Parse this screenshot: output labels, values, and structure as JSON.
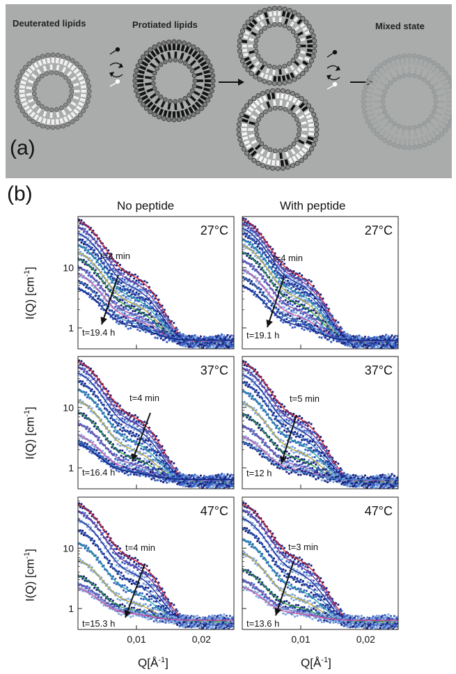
{
  "panel_a": {
    "label": "(a)",
    "titles": {
      "deuterated": "Deuterated lipids",
      "protiated": "Protiated lipids",
      "mixed": "Mixed state"
    }
  },
  "panel_b": {
    "label": "(b)",
    "col_titles": [
      "No peptide",
      "With peptide"
    ],
    "ylabel_text": "I(Q) [cm",
    "ylabel_sup": "-1",
    "ylabel_close": "]",
    "xlabel_text": "Q[Å",
    "xlabel_sup": "-1",
    "xlabel_close": "]",
    "y_ticks": [
      "10",
      "1"
    ],
    "x_ticks": [
      "0,01",
      "0,02"
    ]
  },
  "chart_data": [
    {
      "type": "scatter",
      "panel": "no-peptide-27C",
      "temperature": "27°C",
      "annotation_top": "t=3 min",
      "annotation_bottom": "t=19.4 h",
      "y_scale": "log",
      "ylim": [
        0.45,
        70
      ],
      "xlim": [
        0.001,
        0.025
      ],
      "y_ticks": [
        10,
        1
      ],
      "x_ticks": [
        "0,01",
        "0,02"
      ],
      "curves": [
        {
          "y0": 62,
          "amp": 0.28
        },
        {
          "y0": 48,
          "amp": 0.32
        },
        {
          "y0": 38,
          "amp": 0.36
        },
        {
          "y0": 30,
          "amp": 0.4
        },
        {
          "y0": 24,
          "amp": 0.45
        },
        {
          "y0": 18,
          "amp": 0.5
        },
        {
          "y0": 14,
          "amp": 0.55
        },
        {
          "y0": 10,
          "amp": 0.6
        },
        {
          "y0": 7.5,
          "amp": 0.7
        },
        {
          "y0": 5.5,
          "amp": 0.78
        },
        {
          "y0": 4,
          "amp": 0.85
        }
      ]
    },
    {
      "type": "scatter",
      "panel": "with-peptide-27C",
      "temperature": "27°C",
      "annotation_top": "t=4 min",
      "annotation_bottom": "t=19.1 h",
      "y_scale": "log",
      "ylim": [
        0.45,
        70
      ],
      "xlim": [
        0.001,
        0.025
      ],
      "y_ticks": [
        10,
        1
      ],
      "x_ticks": [
        "0,01",
        "0,02"
      ],
      "curves": [
        {
          "y0": 65,
          "amp": 0.28
        },
        {
          "y0": 55,
          "amp": 0.3
        },
        {
          "y0": 46,
          "amp": 0.33
        },
        {
          "y0": 38,
          "amp": 0.36
        },
        {
          "y0": 30,
          "amp": 0.4
        },
        {
          "y0": 24,
          "amp": 0.45
        },
        {
          "y0": 18,
          "amp": 0.5
        },
        {
          "y0": 13,
          "amp": 0.56
        },
        {
          "y0": 9,
          "amp": 0.64
        },
        {
          "y0": 6.5,
          "amp": 0.72
        },
        {
          "y0": 4.5,
          "amp": 0.8
        }
      ]
    },
    {
      "type": "scatter",
      "panel": "no-peptide-37C",
      "temperature": "37°C",
      "annotation_top": "t=4 min",
      "annotation_bottom": "t=16.4 h",
      "y_scale": "log",
      "ylim": [
        0.45,
        70
      ],
      "xlim": [
        0.001,
        0.025
      ],
      "y_ticks": [
        10,
        1
      ],
      "x_ticks": [
        "0,01",
        "0,02"
      ],
      "curves": [
        {
          "y0": 60,
          "amp": 0.28
        },
        {
          "y0": 48,
          "amp": 0.32
        },
        {
          "y0": 38,
          "amp": 0.36
        },
        {
          "y0": 28,
          "amp": 0.42
        },
        {
          "y0": 20,
          "amp": 0.48
        },
        {
          "y0": 13,
          "amp": 0.55
        },
        {
          "y0": 8,
          "amp": 0.64
        },
        {
          "y0": 5,
          "amp": 0.74
        },
        {
          "y0": 3,
          "amp": 0.85
        },
        {
          "y0": 2.2,
          "amp": 0.9
        },
        {
          "y0": 1.9,
          "amp": 0.95
        }
      ]
    },
    {
      "type": "scatter",
      "panel": "with-peptide-37C",
      "temperature": "37°C",
      "annotation_top": "t=5 min",
      "annotation_bottom": "t=12 h",
      "y_scale": "log",
      "ylim": [
        0.45,
        70
      ],
      "xlim": [
        0.001,
        0.025
      ],
      "y_ticks": [
        10,
        1
      ],
      "x_ticks": [
        "0,01",
        "0,02"
      ],
      "curves": [
        {
          "y0": 58,
          "amp": 0.3
        },
        {
          "y0": 46,
          "amp": 0.33
        },
        {
          "y0": 36,
          "amp": 0.37
        },
        {
          "y0": 27,
          "amp": 0.42
        },
        {
          "y0": 19,
          "amp": 0.48
        },
        {
          "y0": 12,
          "amp": 0.56
        },
        {
          "y0": 7.5,
          "amp": 0.66
        },
        {
          "y0": 4.5,
          "amp": 0.76
        },
        {
          "y0": 2.8,
          "amp": 0.86
        },
        {
          "y0": 2.1,
          "amp": 0.92
        }
      ]
    },
    {
      "type": "scatter",
      "panel": "no-peptide-47C",
      "temperature": "47°C",
      "annotation_top": "t=4 min",
      "annotation_bottom": "t=15.3 h",
      "y_scale": "log",
      "ylim": [
        0.45,
        70
      ],
      "xlim": [
        0.001,
        0.025
      ],
      "y_ticks": [
        10,
        1
      ],
      "x_ticks": [
        "0,01",
        "0,02"
      ],
      "curves": [
        {
          "y0": 55,
          "amp": 0.3
        },
        {
          "y0": 42,
          "amp": 0.34
        },
        {
          "y0": 30,
          "amp": 0.4
        },
        {
          "y0": 20,
          "amp": 0.46
        },
        {
          "y0": 12,
          "amp": 0.54
        },
        {
          "y0": 6,
          "amp": 0.66
        },
        {
          "y0": 3,
          "amp": 0.8
        },
        {
          "y0": 2,
          "amp": 0.9
        },
        {
          "y0": 1.6,
          "amp": 0.95
        }
      ]
    },
    {
      "type": "scatter",
      "panel": "with-peptide-47C",
      "temperature": "47°C",
      "annotation_top": "t=3 min",
      "annotation_bottom": "t=13.6 h",
      "y_scale": "log",
      "ylim": [
        0.45,
        70
      ],
      "xlim": [
        0.001,
        0.025
      ],
      "y_ticks": [
        10,
        1
      ],
      "x_ticks": [
        "0,01",
        "0,02"
      ],
      "curves": [
        {
          "y0": 56,
          "amp": 0.3
        },
        {
          "y0": 44,
          "amp": 0.33
        },
        {
          "y0": 32,
          "amp": 0.38
        },
        {
          "y0": 22,
          "amp": 0.44
        },
        {
          "y0": 14,
          "amp": 0.52
        },
        {
          "y0": 8,
          "amp": 0.62
        },
        {
          "y0": 4,
          "amp": 0.76
        },
        {
          "y0": 2.4,
          "amp": 0.88
        },
        {
          "y0": 1.7,
          "amp": 0.94
        }
      ]
    }
  ]
}
